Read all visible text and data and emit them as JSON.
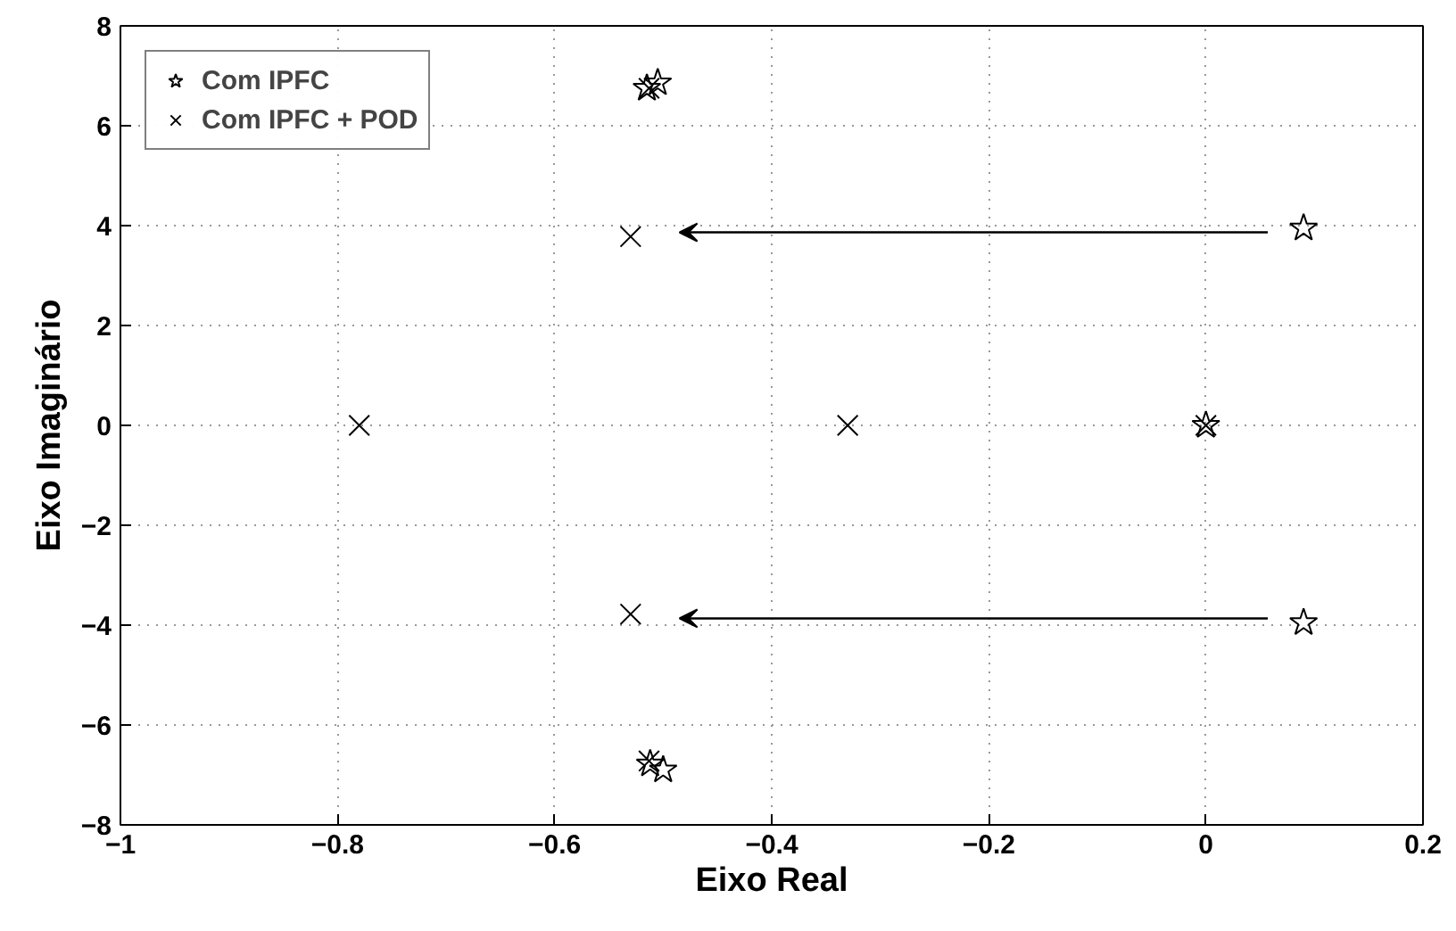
{
  "chart_data": {
    "type": "scatter",
    "xlabel": "Eixo Real",
    "ylabel": "Eixo Imaginário",
    "xlim": [
      -1,
      0.2
    ],
    "ylim": [
      -8,
      8
    ],
    "xticks": [
      -1,
      -0.8,
      -0.6,
      -0.4,
      -0.2,
      0,
      0.2
    ],
    "yticks": [
      -8,
      -6,
      -4,
      -2,
      0,
      2,
      4,
      6,
      8
    ],
    "grid": true,
    "legend": "top left",
    "series": [
      {
        "name": "Com IPFC",
        "color": "#000000",
        "marker": "star",
        "x": [
          -0.505,
          -0.515,
          0.09,
          0,
          0.09,
          -0.5,
          -0.512
        ],
        "values": [
          6.86,
          6.75,
          3.95,
          0,
          -3.95,
          -6.9,
          -6.78
        ]
      },
      {
        "name": "Com IPFC + POD",
        "color": "#000000",
        "marker": "cross",
        "x": [
          -0.513,
          -0.53,
          -0.78,
          -0.33,
          0,
          -0.53,
          -0.513
        ],
        "values": [
          6.75,
          3.78,
          0,
          0,
          0,
          -3.78,
          -6.72
        ]
      }
    ]
  }
}
